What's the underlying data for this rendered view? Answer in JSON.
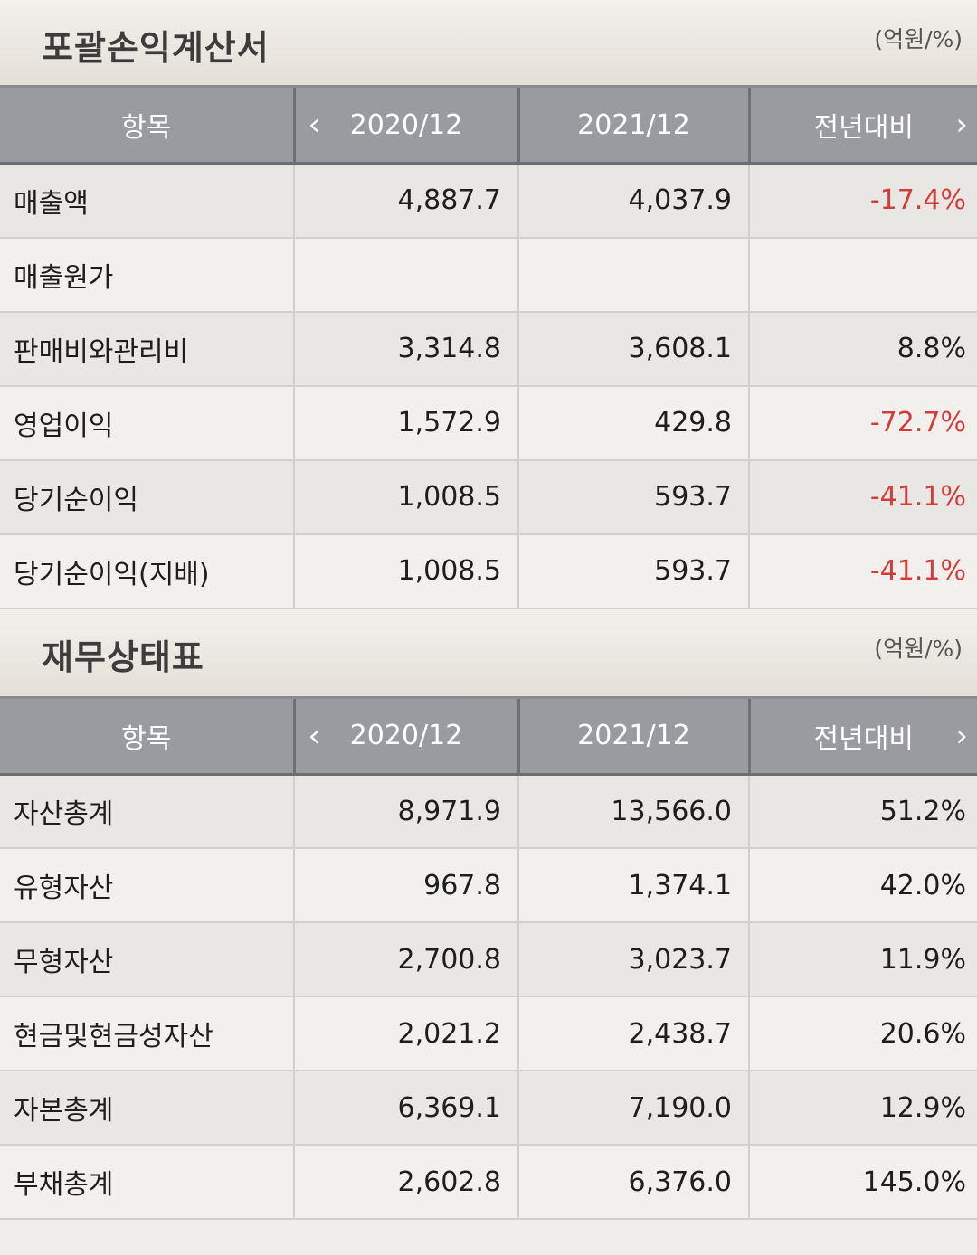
{
  "income": {
    "title": "포괄손익계산서",
    "unit": "(억원/%)",
    "header": {
      "item": "항목",
      "col1": "2020/12",
      "col2": "2021/12",
      "col3": "전년대비"
    },
    "rows": [
      {
        "label": "매출액",
        "v2020": "4,887.7",
        "v2021": "4,037.9",
        "change": "-17.4%"
      },
      {
        "label": "매출원가",
        "v2020": "",
        "v2021": "",
        "change": ""
      },
      {
        "label": "판매비와관리비",
        "v2020": "3,314.8",
        "v2021": "3,608.1",
        "change": "8.8%"
      },
      {
        "label": "영업이익",
        "v2020": "1,572.9",
        "v2021": "429.8",
        "change": "-72.7%"
      },
      {
        "label": "당기순이익",
        "v2020": "1,008.5",
        "v2021": "593.7",
        "change": "-41.1%"
      },
      {
        "label": "당기순이익(지배)",
        "v2020": "1,008.5",
        "v2021": "593.7",
        "change": "-41.1%"
      }
    ]
  },
  "balance": {
    "title": "재무상태표",
    "unit": "(억원/%)",
    "header": {
      "item": "항목",
      "col1": "2020/12",
      "col2": "2021/12",
      "col3": "전년대비"
    },
    "rows": [
      {
        "label": "자산총계",
        "v2020": "8,971.9",
        "v2021": "13,566.0",
        "change": "51.2%"
      },
      {
        "label": "유형자산",
        "v2020": "967.8",
        "v2021": "1,374.1",
        "change": "42.0%"
      },
      {
        "label": "무형자산",
        "v2020": "2,700.8",
        "v2021": "3,023.7",
        "change": "11.9%"
      },
      {
        "label": "현금및현금성자산",
        "v2020": "2,021.2",
        "v2021": "2,438.7",
        "change": "20.6%"
      },
      {
        "label": "자본총계",
        "v2020": "6,369.1",
        "v2021": "7,190.0",
        "change": "12.9%"
      },
      {
        "label": "부채총계",
        "v2020": "2,602.8",
        "v2021": "6,376.0",
        "change": "145.0%"
      }
    ]
  },
  "icons": {
    "prev": "chevron-left-icon",
    "next": "chevron-right-icon"
  },
  "colors": {
    "negative": "#d53b3b",
    "header_bg": "#9a9ba1"
  }
}
